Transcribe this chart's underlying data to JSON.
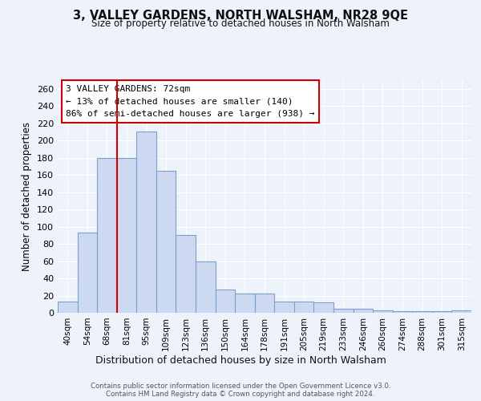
{
  "title": "3, VALLEY GARDENS, NORTH WALSHAM, NR28 9QE",
  "subtitle": "Size of property relative to detached houses in North Walsham",
  "xlabel": "Distribution of detached houses by size in North Walsham",
  "ylabel": "Number of detached properties",
  "bar_color": "#ccd9f0",
  "bar_edge_color": "#7aa0cc",
  "categories": [
    "40sqm",
    "54sqm",
    "68sqm",
    "81sqm",
    "95sqm",
    "109sqm",
    "123sqm",
    "136sqm",
    "150sqm",
    "164sqm",
    "178sqm",
    "191sqm",
    "205sqm",
    "219sqm",
    "233sqm",
    "246sqm",
    "260sqm",
    "274sqm",
    "288sqm",
    "301sqm",
    "315sqm"
  ],
  "values": [
    13,
    93,
    180,
    180,
    210,
    165,
    90,
    60,
    27,
    22,
    22,
    13,
    13,
    12,
    5,
    5,
    3,
    2,
    2,
    2,
    3
  ],
  "ylim": [
    0,
    270
  ],
  "yticks": [
    0,
    20,
    40,
    60,
    80,
    100,
    120,
    140,
    160,
    180,
    200,
    220,
    240,
    260
  ],
  "vline_index": 2,
  "vline_color": "#cc0000",
  "annotation_title": "3 VALLEY GARDENS: 72sqm",
  "annotation_line1": "← 13% of detached houses are smaller (140)",
  "annotation_line2": "86% of semi-detached houses are larger (938) →",
  "annotation_box_color": "#ffffff",
  "annotation_box_edge": "#cc0000",
  "background_color": "#eef2fb",
  "grid_color": "#ffffff",
  "footer1": "Contains HM Land Registry data © Crown copyright and database right 2024.",
  "footer2": "Contains public sector information licensed under the Open Government Licence v3.0."
}
